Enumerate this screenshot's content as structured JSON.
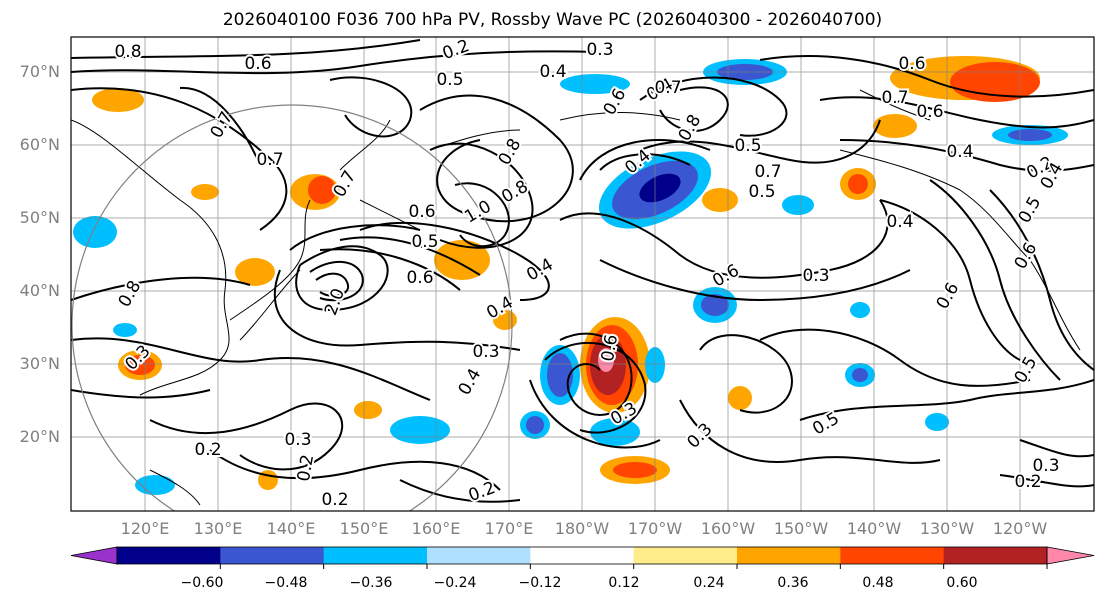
{
  "title": "2026040100 F036 700 hPa PV, Rossby Wave PC (2026040300 - 2026040700)",
  "lat_labels": [
    "70°N",
    "60°N",
    "50°N",
    "40°N",
    "30°N",
    "20°N"
  ],
  "lon_labels": [
    "120°E",
    "130°E",
    "140°E",
    "150°E",
    "160°E",
    "170°E",
    "180°W",
    "170°W",
    "160°W",
    "150°W",
    "140°W",
    "130°W",
    "120°W"
  ],
  "colorbar": {
    "ticks": [
      "−0.60",
      "−0.48",
      "−0.36",
      "−0.24",
      "−0.12",
      "0.12",
      "0.24",
      "0.36",
      "0.48",
      "0.60"
    ],
    "colors": [
      "#9932cc",
      "#00008b",
      "#3a56d0",
      "#00bfff",
      "#b0e0ff",
      "#ffffff",
      "#ffec8b",
      "#ffa500",
      "#ff4500",
      "#b22222",
      "#ff88aa"
    ]
  },
  "contour_labels": [
    "0.8",
    "0.6",
    "0.2",
    "0.3",
    "0.4",
    "0.5",
    "0.7",
    "0.7",
    "0.6",
    "0.4",
    "0.7",
    "0.6",
    "0.7",
    "0.8",
    "0.5",
    "0.4",
    "0.8",
    "1.0",
    "0.8",
    "0.7",
    "0.6",
    "0.5",
    "0.7",
    "0.8",
    "0.4",
    "0.2",
    "0.6",
    "2.0",
    "0.4",
    "0.6",
    "0.3",
    "0.4",
    "0.6",
    "0.5",
    "0.3",
    "0.3",
    "0.2",
    "0.6",
    "0.3",
    "0.5",
    "0.3",
    "0.2",
    "0.4",
    "0.2",
    "0.2",
    "0.3",
    "0.2",
    "0.3",
    "0.4",
    "0.6",
    "0.5",
    "0.6",
    "0.4",
    "0.5"
  ]
}
